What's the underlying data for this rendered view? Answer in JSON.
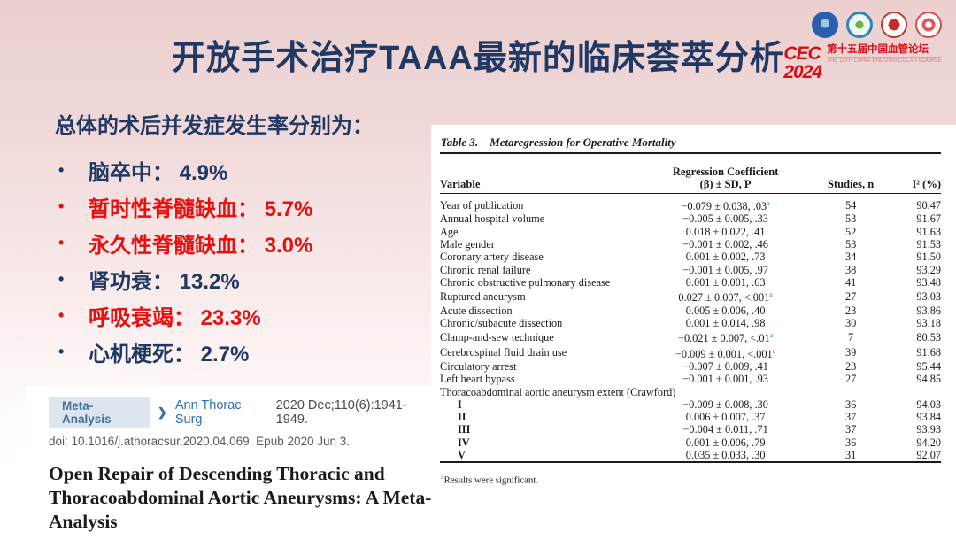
{
  "slide_title": "开放手术治疗TAAA最新的临床荟萃分析",
  "branding": {
    "cec": "CEC 2024",
    "forum_cn": "第十五届中国血管论坛",
    "forum_en": "THE 15TH CHINA ENDOVASCULAR COURSE",
    "logos": [
      "hospital-emblem-blue",
      "society-emblem-teal",
      "seal-emblem-red",
      "flower-emblem-red"
    ]
  },
  "summary": {
    "heading": "总体的术后并发症发生率分别为：",
    "bullets": [
      {
        "text": "脑卒中： 4.9%",
        "color": "navy"
      },
      {
        "text": "暂时性脊髓缺血： 5.7%",
        "color": "red"
      },
      {
        "text": "永久性脊髓缺血： 3.0%",
        "color": "red"
      },
      {
        "text": "肾功衰： 13.2%",
        "color": "navy"
      },
      {
        "text": "呼吸衰竭： 23.3%",
        "color": "red"
      },
      {
        "text": "心机梗死： 2.7%",
        "color": "navy"
      }
    ]
  },
  "citation": {
    "badge": "Meta-Analysis",
    "chevron": "❯",
    "journal": "Ann Thorac Surg.",
    "issue": "2020 Dec;110(6):1941-1949.",
    "doi_line": "doi: 10.1016/j.athoracsur.2020.04.069. Epub 2020 Jun 3.",
    "paper_title": "Open Repair of Descending Thoracic and Thoracoabdominal Aortic Aneurysms: A Meta-Analysis"
  },
  "table": {
    "caption_label": "Table 3.",
    "caption_text": "Metaregression for Operative Mortality",
    "columns": {
      "variable": "Variable",
      "coefficient_line1": "Regression Coefficient",
      "coefficient_line2": "(β) ± SD, P",
      "studies": "Studies, n",
      "heterogeneity": "I² (%)"
    },
    "footnote_marker": "a",
    "footnote_text": "Results were significant.",
    "rows": [
      {
        "v": "Year of publication",
        "c": "−0.079 ± 0.038, .03",
        "sig": true,
        "n": "54",
        "i2": "90.47"
      },
      {
        "v": "Annual hospital volume",
        "c": "−0.005 ± 0.005, .33",
        "sig": false,
        "n": "53",
        "i2": "91.67"
      },
      {
        "v": "Age",
        "c": "0.018 ± 0.022, .41",
        "sig": false,
        "n": "52",
        "i2": "91.63"
      },
      {
        "v": "Male gender",
        "c": "−0.001 ± 0.002, .46",
        "sig": false,
        "n": "53",
        "i2": "91.53"
      },
      {
        "v": "Coronary artery disease",
        "c": "0.001 ± 0.002, .73",
        "sig": false,
        "n": "34",
        "i2": "91.50"
      },
      {
        "v": "Chronic renal failure",
        "c": "−0.001 ± 0.005, .97",
        "sig": false,
        "n": "38",
        "i2": "93.29"
      },
      {
        "v": "Chronic obstructive pulmonary disease",
        "c": "0.001 ± 0.001, .63",
        "sig": false,
        "n": "41",
        "i2": "93.48"
      },
      {
        "v": "Ruptured aneurysm",
        "c": "0.027 ± 0.007, <.001",
        "sig": true,
        "n": "27",
        "i2": "93.03"
      },
      {
        "v": "Acute dissection",
        "c": "0.005 ± 0.006, .40",
        "sig": false,
        "n": "23",
        "i2": "93.86"
      },
      {
        "v": "Chronic/subacute dissection",
        "c": "0.001 ± 0.014, .98",
        "sig": false,
        "n": "30",
        "i2": "93.18"
      },
      {
        "v": "Clamp-and-sew technique",
        "c": "−0.021 ± 0.007, <.01",
        "sig": true,
        "n": "7",
        "i2": "80.53"
      },
      {
        "v": "Cerebrospinal fluid drain use",
        "c": "−0.009 ± 0.001, <.001",
        "sig": true,
        "n": "39",
        "i2": "91.68"
      },
      {
        "v": "Circulatory arrest",
        "c": "−0.007 ± 0.009, .41",
        "sig": false,
        "n": "23",
        "i2": "95.44"
      },
      {
        "v": "Left heart bypass",
        "c": "−0.001 ± 0.001, .93",
        "sig": false,
        "n": "27",
        "i2": "94.85"
      },
      {
        "v": "Thoracoabdominal aortic aneurysm extent (Crawford)",
        "c": "",
        "sig": false,
        "n": "",
        "i2": "",
        "section": true
      },
      {
        "v": "I",
        "c": "−0.009 ± 0.008, .30",
        "sig": false,
        "n": "36",
        "i2": "94.03",
        "indent": true
      },
      {
        "v": "II",
        "c": "0.006 ± 0.007, .37",
        "sig": false,
        "n": "37",
        "i2": "93.84",
        "indent": true
      },
      {
        "v": "III",
        "c": "−0.004 ± 0.011, .71",
        "sig": false,
        "n": "37",
        "i2": "93.93",
        "indent": true
      },
      {
        "v": "IV",
        "c": "0.001 ± 0.006, .79",
        "sig": false,
        "n": "36",
        "i2": "94.20",
        "indent": true
      },
      {
        "v": "V",
        "c": "0.035 ± 0.033, .30",
        "sig": false,
        "n": "31",
        "i2": "92.07",
        "indent": true
      }
    ]
  },
  "colors": {
    "navy": "#1f3864",
    "red": "#e8100f",
    "link_blue": "#2f6fb2",
    "badge_bg": "#dde6ef",
    "badge_text": "#44719e",
    "sig_superscript_blue": "#3e8ec9",
    "cec_red": "#d40f16",
    "background_pink": "#ecd0d0"
  }
}
